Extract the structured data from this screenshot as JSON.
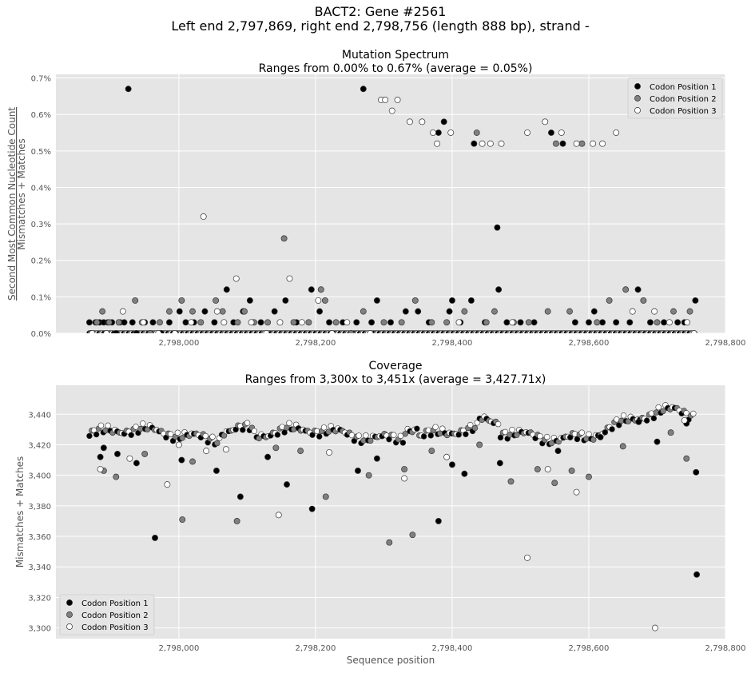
{
  "figure": {
    "title_line1": "BACT2: Gene #2561",
    "title_line2": "Left end 2,797,869, right end 2,798,756 (length 888 bp), strand -"
  },
  "colors": {
    "panel_bg": "#e5e5e5",
    "grid": "#ffffff",
    "codon1": "#000000",
    "codon2": "#808080",
    "codon3": "#ffffff",
    "marker_edge": "#333333",
    "axis_text": "#555555"
  },
  "chart_data": [
    {
      "type": "scatter",
      "title": "Mutation Spectrum",
      "subtitle": "Ranges from 0.00% to 0.67% (average = 0.05%)",
      "ylabel_top": "Second Most Common Nucleotide Count",
      "ylabel_bottom": "Mismatches + Matches",
      "xlabel": "",
      "xlim": [
        2797820,
        2798800
      ],
      "ylim": [
        0,
        0.71
      ],
      "xticks": [
        2798000,
        2798200,
        2798400,
        2798600,
        2798800
      ],
      "xtick_labels": [
        "2,798,000",
        "2,798,200",
        "2,798,400",
        "2,798,600",
        "2,798,800"
      ],
      "yticks": [
        0,
        0.1,
        0.2,
        0.3,
        0.4,
        0.5,
        0.6,
        0.7
      ],
      "ytick_labels": [
        "0.0%",
        "0.1%",
        "0.2%",
        "0.3%",
        "0.4%",
        "0.5%",
        "0.6%",
        "0.7%"
      ],
      "grid": true,
      "legend": "top-right",
      "series": [
        {
          "name": "Codon Position 1",
          "points": [
            [
              2797869,
              0.03
            ],
            [
              2797872,
              0
            ],
            [
              2797878,
              0.03
            ],
            [
              2797884,
              0.03
            ],
            [
              2797890,
              0.03
            ],
            [
              2797896,
              0.03
            ],
            [
              2797902,
              0.03
            ],
            [
              2797908,
              0
            ],
            [
              2797914,
              0.03
            ],
            [
              2797920,
              0.03
            ],
            [
              2797926,
              0.67
            ],
            [
              2797932,
              0.03
            ],
            [
              2797938,
              0
            ],
            [
              2797950,
              0.03
            ],
            [
              2797962,
              0.03
            ],
            [
              2797974,
              0
            ],
            [
              2797986,
              0.03
            ],
            [
              2798001,
              0.06
            ],
            [
              2798010,
              0.03
            ],
            [
              2798022,
              0.03
            ],
            [
              2798038,
              0.06
            ],
            [
              2798052,
              0.03
            ],
            [
              2798070,
              0.12
            ],
            [
              2798080,
              0.03
            ],
            [
              2798094,
              0.06
            ],
            [
              2798104,
              0.09
            ],
            [
              2798120,
              0.03
            ],
            [
              2798140,
              0.06
            ],
            [
              2798156,
              0.09
            ],
            [
              2798172,
              0.03
            ],
            [
              2798194,
              0.12
            ],
            [
              2798206,
              0.06
            ],
            [
              2798220,
              0.03
            ],
            [
              2798240,
              0.03
            ],
            [
              2798260,
              0.03
            ],
            [
              2798270,
              0.67
            ],
            [
              2798282,
              0.03
            ],
            [
              2798290,
              0.09
            ],
            [
              2798310,
              0.03
            ],
            [
              2798332,
              0.06
            ],
            [
              2798350,
              0.06
            ],
            [
              2798366,
              0.03
            ],
            [
              2798380,
              0.55
            ],
            [
              2798388,
              0.58
            ],
            [
              2798396,
              0.06
            ],
            [
              2798400,
              0.09
            ],
            [
              2798412,
              0.03
            ],
            [
              2798428,
              0.09
            ],
            [
              2798432,
              0.52
            ],
            [
              2798448,
              0.03
            ],
            [
              2798466,
              0.29
            ],
            [
              2798468,
              0.12
            ],
            [
              2798480,
              0.03
            ],
            [
              2798500,
              0.03
            ],
            [
              2798520,
              0.03
            ],
            [
              2798545,
              0.55
            ],
            [
              2798562,
              0.52
            ],
            [
              2798580,
              0.03
            ],
            [
              2798600,
              0.03
            ],
            [
              2798608,
              0.06
            ],
            [
              2798620,
              0.03
            ],
            [
              2798640,
              0.03
            ],
            [
              2798660,
              0.03
            ],
            [
              2798672,
              0.12
            ],
            [
              2798690,
              0.03
            ],
            [
              2798710,
              0.03
            ],
            [
              2798730,
              0.03
            ],
            [
              2798740,
              0.03
            ],
            [
              2798756,
              0.09
            ]
          ]
        },
        {
          "name": "Codon Position 2",
          "points": [
            [
              2797871,
              0
            ],
            [
              2797880,
              0.03
            ],
            [
              2797888,
              0.06
            ],
            [
              2797898,
              0.03
            ],
            [
              2797912,
              0.03
            ],
            [
              2797936,
              0.09
            ],
            [
              2797946,
              0.03
            ],
            [
              2797958,
              0
            ],
            [
              2797972,
              0.03
            ],
            [
              2797986,
              0.06
            ],
            [
              2798004,
              0.09
            ],
            [
              2798020,
              0.06
            ],
            [
              2798032,
              0.03
            ],
            [
              2798054,
              0.09
            ],
            [
              2798064,
              0.06
            ],
            [
              2798086,
              0.03
            ],
            [
              2798096,
              0.06
            ],
            [
              2798110,
              0.03
            ],
            [
              2798130,
              0.03
            ],
            [
              2798154,
              0.26
            ],
            [
              2798168,
              0.03
            ],
            [
              2798190,
              0.03
            ],
            [
              2798208,
              0.12
            ],
            [
              2798214,
              0.09
            ],
            [
              2798230,
              0.03
            ],
            [
              2798252,
              0
            ],
            [
              2798270,
              0.06
            ],
            [
              2798300,
              0.03
            ],
            [
              2798326,
              0.03
            ],
            [
              2798346,
              0.09
            ],
            [
              2798370,
              0.03
            ],
            [
              2798392,
              0.03
            ],
            [
              2798418,
              0.06
            ],
            [
              2798436,
              0.55
            ],
            [
              2798450,
              0.03
            ],
            [
              2798462,
              0.06
            ],
            [
              2798490,
              0.03
            ],
            [
              2798512,
              0.03
            ],
            [
              2798540,
              0.06
            ],
            [
              2798552,
              0.52
            ],
            [
              2798572,
              0.06
            ],
            [
              2798590,
              0.52
            ],
            [
              2798612,
              0.03
            ],
            [
              2798630,
              0.09
            ],
            [
              2798654,
              0.12
            ],
            [
              2798680,
              0.09
            ],
            [
              2798700,
              0.03
            ],
            [
              2798724,
              0.06
            ],
            [
              2798748,
              0.06
            ]
          ]
        },
        {
          "name": "Codon Position 3",
          "points": [
            [
              2797873,
              0
            ],
            [
              2797894,
              0
            ],
            [
              2797918,
              0.06
            ],
            [
              2797948,
              0.03
            ],
            [
              2797970,
              0
            ],
            [
              2797994,
              0
            ],
            [
              2798018,
              0.03
            ],
            [
              2798036,
              0.32
            ],
            [
              2798056,
              0.06
            ],
            [
              2798066,
              0.03
            ],
            [
              2798084,
              0.15
            ],
            [
              2798106,
              0.03
            ],
            [
              2798128,
              0
            ],
            [
              2798148,
              0.03
            ],
            [
              2798162,
              0.15
            ],
            [
              2798180,
              0.03
            ],
            [
              2798204,
              0.09
            ],
            [
              2798224,
              0
            ],
            [
              2798246,
              0.03
            ],
            [
              2798280,
              0
            ],
            [
              2798296,
              0.64
            ],
            [
              2798302,
              0.64
            ],
            [
              2798312,
              0.61
            ],
            [
              2798320,
              0.64
            ],
            [
              2798338,
              0.58
            ],
            [
              2798356,
              0.58
            ],
            [
              2798372,
              0.55
            ],
            [
              2798378,
              0.52
            ],
            [
              2798398,
              0.55
            ],
            [
              2798410,
              0.03
            ],
            [
              2798444,
              0.52
            ],
            [
              2798456,
              0.52
            ],
            [
              2798472,
              0.52
            ],
            [
              2798488,
              0.03
            ],
            [
              2798510,
              0.55
            ],
            [
              2798536,
              0.58
            ],
            [
              2798560,
              0.55
            ],
            [
              2798582,
              0.52
            ],
            [
              2798606,
              0.52
            ],
            [
              2798620,
              0.52
            ],
            [
              2798640,
              0.55
            ],
            [
              2798664,
              0.06
            ],
            [
              2798696,
              0.06
            ],
            [
              2798718,
              0.03
            ],
            [
              2798744,
              0.03
            ],
            [
              2798754,
              0
            ]
          ]
        }
      ]
    },
    {
      "type": "scatter",
      "title": "Coverage",
      "subtitle": "Ranges from 3,300x to 3,451x (average = 3,427.71x)",
      "ylabel": "Mismatches + Matches",
      "xlabel": "Sequence position",
      "xlim": [
        2797820,
        2798800
      ],
      "ylim": [
        3293,
        3459
      ],
      "xticks": [
        2798000,
        2798200,
        2798400,
        2798600,
        2798800
      ],
      "xtick_labels": [
        "2,798,000",
        "2,798,200",
        "2,798,400",
        "2,798,600",
        "2,798,800"
      ],
      "yticks": [
        3300,
        3320,
        3340,
        3360,
        3380,
        3400,
        3420,
        3440
      ],
      "ytick_labels": [
        "3,300",
        "3,320",
        "3,340",
        "3,360",
        "3,380",
        "3,400",
        "3,420",
        "3,440"
      ],
      "grid": true,
      "legend": "bottom-left",
      "baseline_description": "dense band of points between about 3,415 and 3,450",
      "series": [
        {
          "name": "Codon Position 1",
          "points": [
            [
              2797885,
              3412
            ],
            [
              2797890,
              3418
            ],
            [
              2797910,
              3414
            ],
            [
              2797938,
              3408
            ],
            [
              2797965,
              3359
            ],
            [
              2798004,
              3410
            ],
            [
              2798055,
              3403
            ],
            [
              2798090,
              3386
            ],
            [
              2798130,
              3412
            ],
            [
              2798158,
              3394
            ],
            [
              2798195,
              3378
            ],
            [
              2798262,
              3403
            ],
            [
              2798290,
              3411
            ],
            [
              2798380,
              3370
            ],
            [
              2798400,
              3407
            ],
            [
              2798418,
              3401
            ],
            [
              2798470,
              3408
            ],
            [
              2798555,
              3416
            ],
            [
              2798617,
              3425
            ],
            [
              2798673,
              3435
            ],
            [
              2798700,
              3422
            ],
            [
              2798743,
              3434
            ],
            [
              2798757,
              3402
            ],
            [
              2798758,
              3335
            ]
          ]
        },
        {
          "name": "Codon Position 2",
          "points": [
            [
              2797890,
              3403
            ],
            [
              2797908,
              3399
            ],
            [
              2797950,
              3414
            ],
            [
              2798005,
              3371
            ],
            [
              2798020,
              3409
            ],
            [
              2798085,
              3370
            ],
            [
              2798142,
              3418
            ],
            [
              2798178,
              3416
            ],
            [
              2798215,
              3386
            ],
            [
              2798278,
              3400
            ],
            [
              2798308,
              3356
            ],
            [
              2798330,
              3404
            ],
            [
              2798342,
              3361
            ],
            [
              2798370,
              3416
            ],
            [
              2798440,
              3420
            ],
            [
              2798486,
              3396
            ],
            [
              2798525,
              3404
            ],
            [
              2798550,
              3395
            ],
            [
              2798575,
              3403
            ],
            [
              2798600,
              3399
            ],
            [
              2798650,
              3419
            ],
            [
              2798720,
              3428
            ],
            [
              2798743,
              3411
            ]
          ]
        },
        {
          "name": "Codon Position 3",
          "points": [
            [
              2797885,
              3404
            ],
            [
              2797928,
              3411
            ],
            [
              2797983,
              3394
            ],
            [
              2798000,
              3420
            ],
            [
              2798040,
              3416
            ],
            [
              2798069,
              3417
            ],
            [
              2798146,
              3374
            ],
            [
              2798220,
              3415
            ],
            [
              2798330,
              3398
            ],
            [
              2798392,
              3412
            ],
            [
              2798510,
              3346
            ],
            [
              2798540,
              3404
            ],
            [
              2798582,
              3389
            ],
            [
              2798697,
              3300
            ],
            [
              2798740,
              3436
            ]
          ]
        }
      ]
    }
  ]
}
